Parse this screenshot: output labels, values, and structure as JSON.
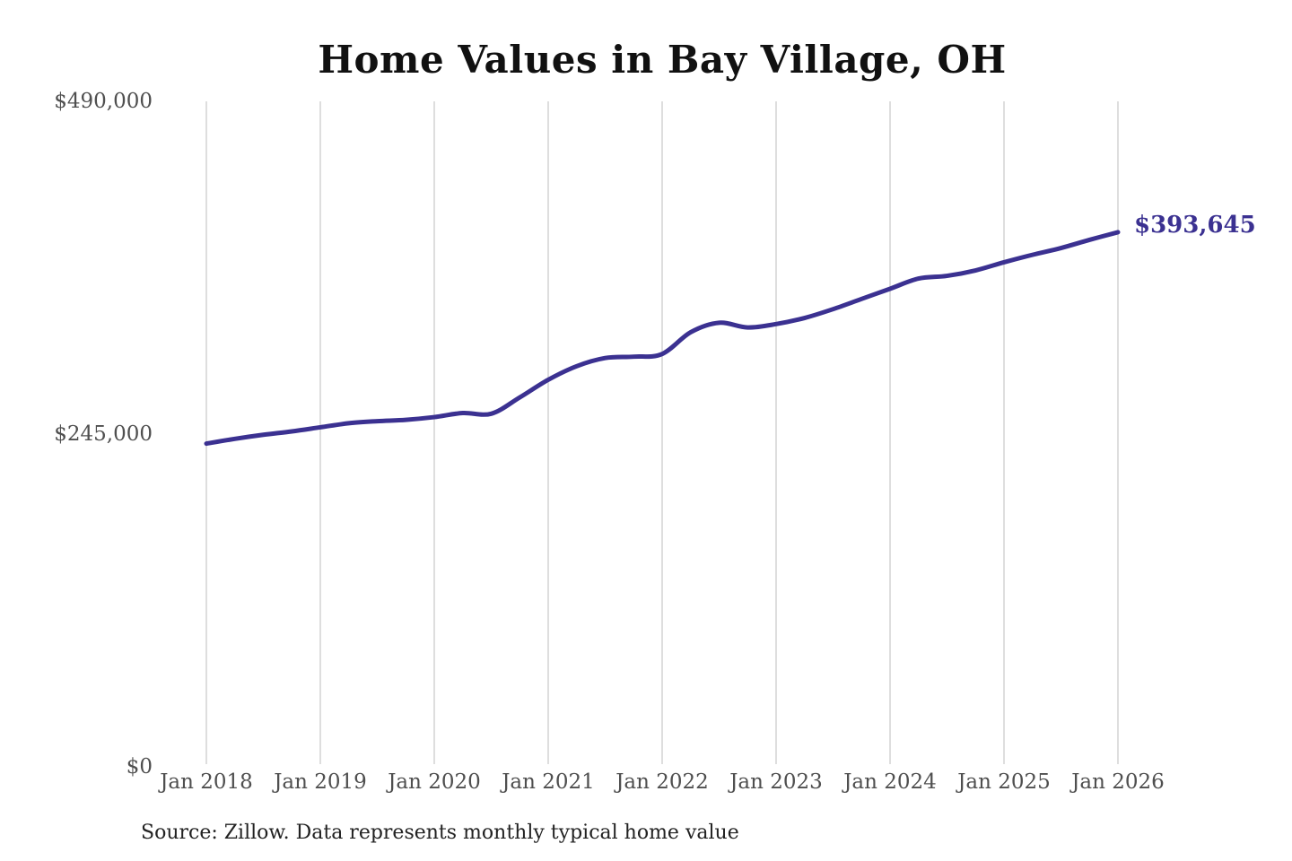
{
  "chart": {
    "title": "Home Values in Bay Village, OH",
    "source_note": "Source: Zillow. Data represents monthly typical home value",
    "annotation": {
      "text": "$393,645"
    },
    "colors": {
      "line": "#3b3191",
      "annotation": "#3b3191",
      "grid": "#cccccc",
      "title": "#111111",
      "axis_label": "#4f4f4f",
      "source": "#222222"
    }
  },
  "chart_data": {
    "type": "line",
    "title": "Home Values in Bay Village, OH",
    "series_name": "Typical home value (monthly, USD)",
    "x": [
      "Jan 2018",
      "Apr 2018",
      "Jul 2018",
      "Oct 2018",
      "Jan 2019",
      "Apr 2019",
      "Jul 2019",
      "Oct 2019",
      "Jan 2020",
      "Apr 2020",
      "Jul 2020",
      "Oct 2020",
      "Jan 2021",
      "Apr 2021",
      "Jul 2021",
      "Oct 2021",
      "Jan 2022",
      "Apr 2022",
      "Jul 2022",
      "Oct 2022",
      "Jan 2023",
      "Apr 2023",
      "Jul 2023",
      "Oct 2023",
      "Jan 2024",
      "Apr 2024",
      "Jul 2024",
      "Oct 2024",
      "Jan 2025",
      "Apr 2025",
      "Jul 2025",
      "Oct 2025",
      "Jan 2026"
    ],
    "values": [
      238000,
      241500,
      244500,
      247000,
      250000,
      253000,
      254500,
      255500,
      257500,
      260500,
      260000,
      272000,
      285000,
      295000,
      301000,
      302000,
      304000,
      320000,
      327000,
      323500,
      326000,
      330500,
      337000,
      344500,
      352000,
      359500,
      361500,
      365500,
      371500,
      377000,
      382000,
      388000,
      393645
    ],
    "xlabel": "",
    "ylabel": "",
    "ylim": [
      0,
      490000
    ],
    "y_ticks": [
      {
        "value": 490000,
        "label": "$490,000"
      },
      {
        "value": 245000,
        "label": "$245,000"
      },
      {
        "value": 0,
        "label": "$0"
      }
    ],
    "x_tick_labels": [
      "Jan 2018",
      "Jan 2019",
      "Jan 2020",
      "Jan 2021",
      "Jan 2022",
      "Jan 2023",
      "Jan 2024",
      "Jan 2025",
      "Jan 2026"
    ],
    "grid": "vertical-only",
    "legend": "none",
    "line_color": "#3b3191",
    "end_value": 393645,
    "end_label": "$393,645"
  }
}
